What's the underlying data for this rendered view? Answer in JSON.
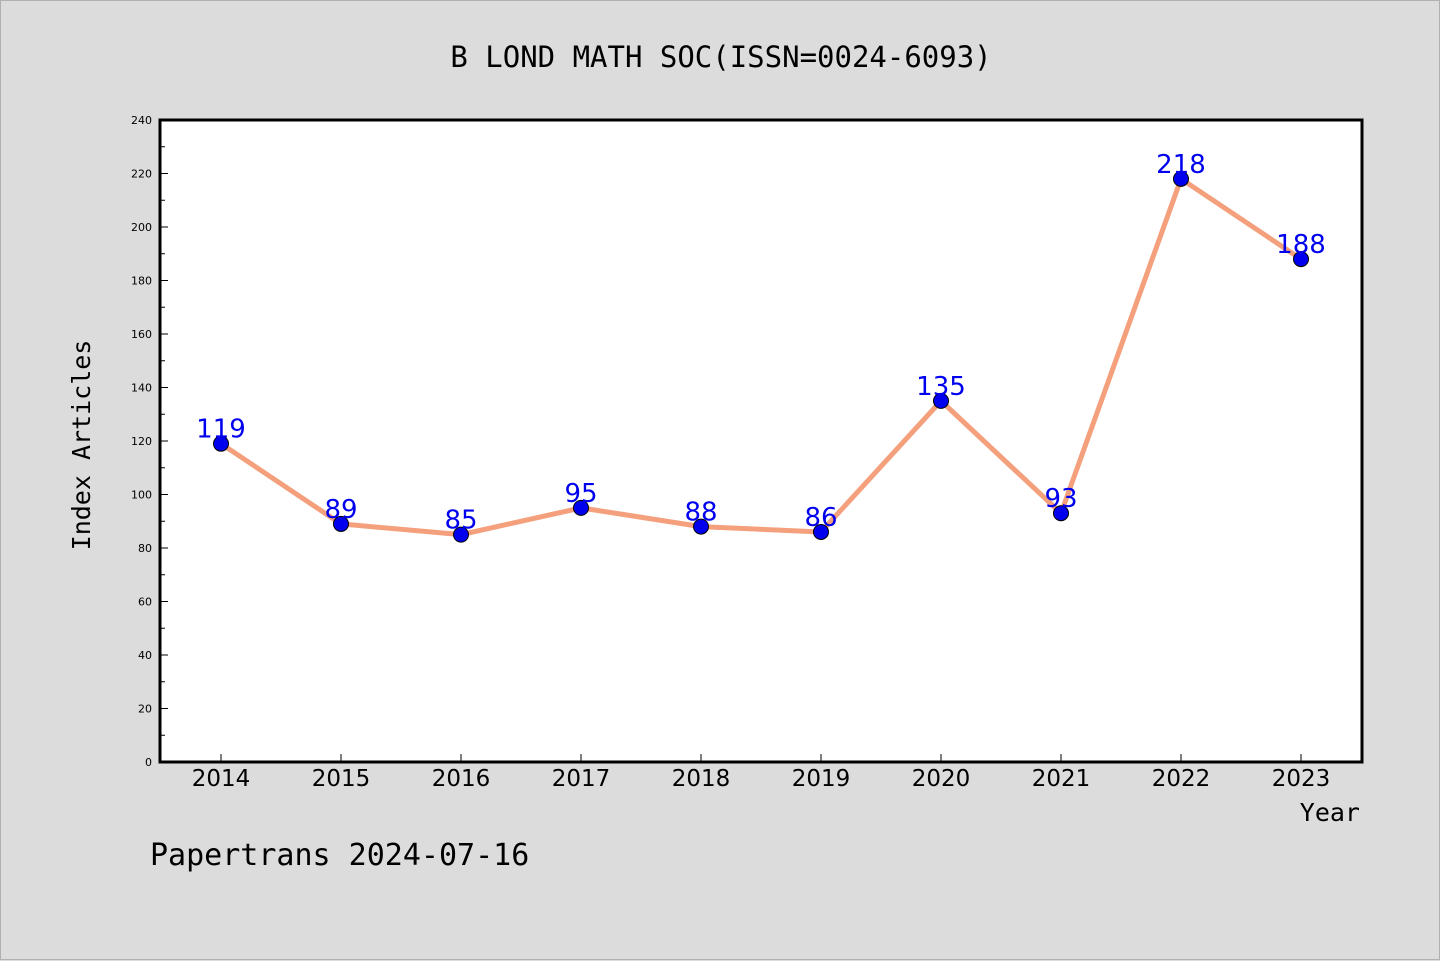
{
  "chart_data": {
    "type": "line",
    "title": "B LOND MATH SOC(ISSN=0024-6093)",
    "xlabel": "Year",
    "ylabel": "Index Articles",
    "categories": [
      "2014",
      "2015",
      "2016",
      "2017",
      "2018",
      "2019",
      "2020",
      "2021",
      "2022",
      "2023"
    ],
    "values": [
      119,
      89,
      85,
      95,
      88,
      86,
      135,
      93,
      218,
      188
    ],
    "ylim": [
      0,
      240
    ],
    "yticks": [
      0,
      20,
      40,
      60,
      80,
      100,
      120,
      140,
      160,
      180,
      200,
      220,
      240
    ],
    "grid": false,
    "legend": "none",
    "colors": {
      "line": "#f4a07c",
      "marker": "#0000ee",
      "label": "#0000ee",
      "background": "#dcdcdc",
      "plot_background": "#ffffff"
    }
  },
  "footer": {
    "text": "Papertrans 2024-07-16"
  }
}
